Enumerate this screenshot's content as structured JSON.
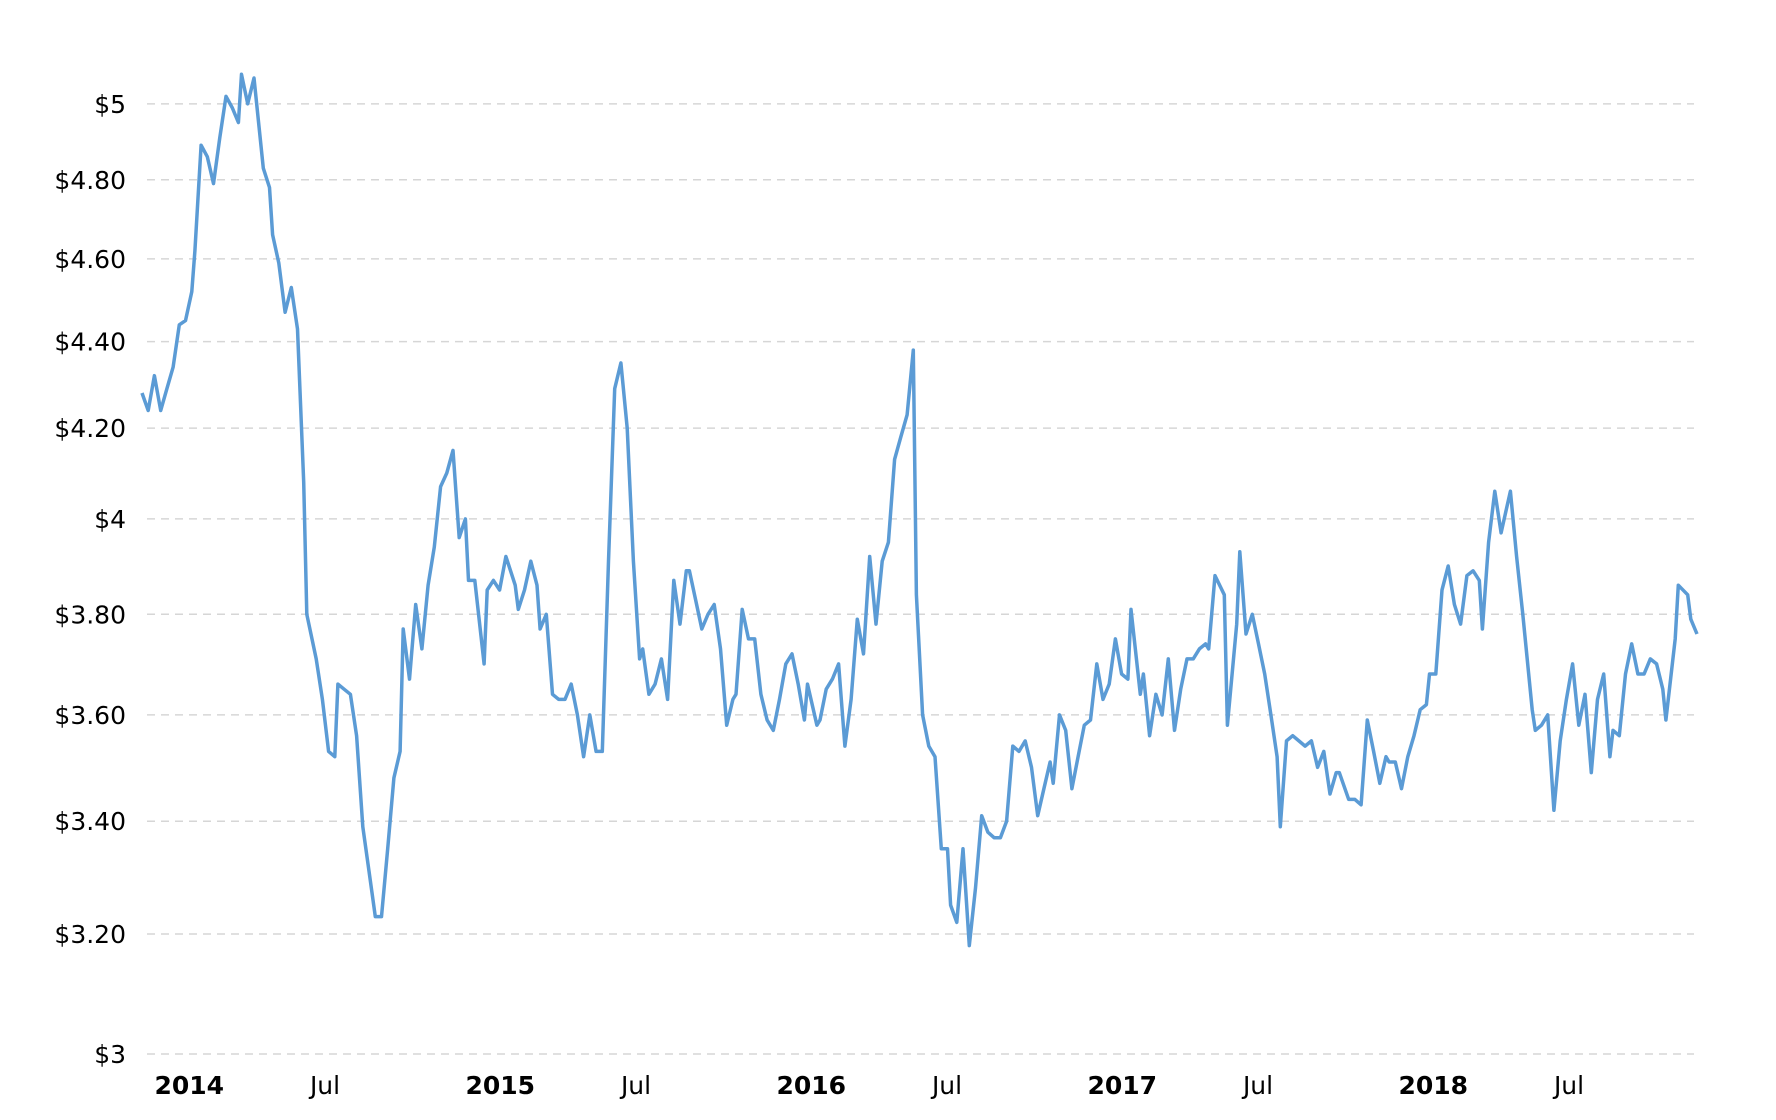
{
  "chart_data": {
    "type": "line",
    "log_scale_y": true,
    "grid": true,
    "xlim": [
      2013.96,
      2018.96
    ],
    "ylim": [
      3,
      5.1
    ],
    "xticks": [
      {
        "value": 2014,
        "label": "2014"
      },
      {
        "value": 2014.5,
        "label": "Jul"
      },
      {
        "value": 2015,
        "label": "2015"
      },
      {
        "value": 2015.5,
        "label": "Jul"
      },
      {
        "value": 2016,
        "label": "2016"
      },
      {
        "value": 2016.5,
        "label": "Jul"
      },
      {
        "value": 2017,
        "label": "2017"
      },
      {
        "value": 2017.5,
        "label": "Jul"
      },
      {
        "value": 2018,
        "label": "2018"
      },
      {
        "value": 2018.5,
        "label": "Jul"
      }
    ],
    "yticks": [
      {
        "value": 3,
        "label": "$3"
      },
      {
        "value": 3.2,
        "label": "$3.20"
      },
      {
        "value": 3.4,
        "label": "$3.40"
      },
      {
        "value": 3.6,
        "label": "$3.60"
      },
      {
        "value": 3.8,
        "label": "$3.80"
      },
      {
        "value": 4,
        "label": "$4"
      },
      {
        "value": 4.2,
        "label": "$4.20"
      },
      {
        "value": 4.4,
        "label": "$4.40"
      },
      {
        "value": 4.6,
        "label": "$4.60"
      },
      {
        "value": 4.8,
        "label": "$4.80"
      },
      {
        "value": 5,
        "label": "$5"
      }
    ],
    "color": "#5b9bd5",
    "x": [
      2013.96,
      2013.98,
      2014.0,
      2014.02,
      2014.04,
      2014.06,
      2014.08,
      2014.1,
      2014.12,
      2014.13,
      2014.15,
      2014.17,
      2014.19,
      2014.21,
      2014.23,
      2014.25,
      2014.27,
      2014.28,
      2014.3,
      2014.32,
      2014.35,
      2014.37,
      2014.38,
      2014.4,
      2014.42,
      2014.44,
      2014.46,
      2014.48,
      2014.49,
      2014.52,
      2014.54,
      2014.56,
      2014.58,
      2014.59,
      2014.61,
      2014.63,
      2014.65,
      2014.67,
      2014.69,
      2014.71,
      2014.73,
      2014.75,
      2014.77,
      2014.79,
      2014.8,
      2014.82,
      2014.84,
      2014.86,
      2014.88,
      2014.9,
      2014.92,
      2014.94,
      2014.96,
      2014.98,
      2015.0,
      2015.01,
      2015.03,
      2015.06,
      2015.07,
      2015.09,
      2015.11,
      2015.13,
      2015.16,
      2015.17,
      2015.19,
      2015.21,
      2015.23,
      2015.24,
      2015.26,
      2015.28,
      2015.3,
      2015.32,
      2015.34,
      2015.36,
      2015.38,
      2015.4,
      2015.42,
      2015.44,
      2015.46,
      2015.48,
      2015.5,
      2015.52,
      2015.54,
      2015.56,
      2015.57,
      2015.59,
      2015.61,
      2015.63,
      2015.65,
      2015.67,
      2015.69,
      2015.71,
      2015.72,
      2015.74,
      2015.76,
      2015.78,
      2015.8,
      2015.82,
      2015.84,
      2015.86,
      2015.87,
      2015.89,
      2015.91,
      2015.93,
      2015.95,
      2015.97,
      2015.99,
      2016.01,
      2016.03,
      2016.05,
      2016.07,
      2016.09,
      2016.1,
      2016.13,
      2016.14,
      2016.16,
      2016.18,
      2016.2,
      2016.22,
      2016.24,
      2016.26,
      2016.28,
      2016.3,
      2016.32,
      2016.34,
      2016.36,
      2016.38,
      2016.4,
      2016.42,
      2016.44,
      2016.45,
      2016.47,
      2016.49,
      2016.51,
      2016.53,
      2016.55,
      2016.56,
      2016.58,
      2016.6,
      2016.62,
      2016.64,
      2016.66,
      2016.68,
      2016.7,
      2016.72,
      2016.74,
      2016.76,
      2016.78,
      2016.8,
      2016.82,
      2016.84,
      2016.86,
      2016.88,
      2016.89,
      2016.91,
      2016.93,
      2016.95,
      2016.97,
      2016.99,
      2017.01,
      2017.03,
      2017.05,
      2017.07,
      2017.09,
      2017.11,
      2017.13,
      2017.14,
      2017.17,
      2017.18,
      2017.2,
      2017.22,
      2017.24,
      2017.26,
      2017.28,
      2017.3,
      2017.32,
      2017.34,
      2017.36,
      2017.38,
      2017.39,
      2017.41,
      2017.44,
      2017.45,
      2017.48,
      2017.49,
      2017.51,
      2017.53,
      2017.55,
      2017.57,
      2017.59,
      2017.61,
      2017.62,
      2017.64,
      2017.66,
      2017.68,
      2017.7,
      2017.72,
      2017.74,
      2017.76,
      2017.78,
      2017.8,
      2017.81,
      2017.84,
      2017.86,
      2017.88,
      2017.9,
      2017.92,
      2017.94,
      2017.96,
      2017.97,
      2017.99,
      2018.01,
      2018.03,
      2018.05,
      2018.07,
      2018.09,
      2018.1,
      2018.12,
      2018.14,
      2018.16,
      2018.18,
      2018.2,
      2018.22,
      2018.24,
      2018.26,
      2018.27,
      2018.29,
      2018.31,
      2018.33,
      2018.35,
      2018.36,
      2018.38,
      2018.4,
      2018.43,
      2018.44,
      2018.46,
      2018.48,
      2018.5,
      2018.52,
      2018.54,
      2018.56,
      2018.58,
      2018.6,
      2018.62,
      2018.64,
      2018.66,
      2018.68,
      2018.69,
      2018.71,
      2018.73,
      2018.75,
      2018.77,
      2018.79,
      2018.81,
      2018.83,
      2018.85,
      2018.86,
      2018.89,
      2018.9,
      2018.93,
      2018.94,
      2018.96
    ],
    "values": [
      4.28,
      4.24,
      4.32,
      4.24,
      4.29,
      4.34,
      4.44,
      4.45,
      4.52,
      4.62,
      4.89,
      4.86,
      4.79,
      4.91,
      5.02,
      4.99,
      4.95,
      5.08,
      5.0,
      5.07,
      4.83,
      4.78,
      4.66,
      4.59,
      4.47,
      4.53,
      4.43,
      4.08,
      3.8,
      3.71,
      3.63,
      3.53,
      3.52,
      3.66,
      3.65,
      3.64,
      3.56,
      3.39,
      3.31,
      3.23,
      3.23,
      3.35,
      3.48,
      3.53,
      3.77,
      3.67,
      3.82,
      3.73,
      3.86,
      3.94,
      4.07,
      4.1,
      4.15,
      3.96,
      4.0,
      3.87,
      3.87,
      3.7,
      3.85,
      3.87,
      3.85,
      3.92,
      3.86,
      3.81,
      3.85,
      3.91,
      3.86,
      3.77,
      3.8,
      3.64,
      3.63,
      3.63,
      3.66,
      3.6,
      3.52,
      3.6,
      3.53,
      3.53,
      3.91,
      4.29,
      4.35,
      4.2,
      3.91,
      3.71,
      3.73,
      3.64,
      3.66,
      3.71,
      3.63,
      3.87,
      3.78,
      3.89,
      3.89,
      3.83,
      3.77,
      3.8,
      3.82,
      3.73,
      3.58,
      3.63,
      3.64,
      3.81,
      3.75,
      3.75,
      3.64,
      3.59,
      3.57,
      3.63,
      3.7,
      3.72,
      3.66,
      3.59,
      3.66,
      3.58,
      3.59,
      3.65,
      3.67,
      3.7,
      3.54,
      3.63,
      3.79,
      3.72,
      3.92,
      3.78,
      3.91,
      3.95,
      4.13,
      4.18,
      4.23,
      4.38,
      3.84,
      3.6,
      3.54,
      3.52,
      3.35,
      3.35,
      3.25,
      3.22,
      3.35,
      3.18,
      3.28,
      3.41,
      3.38,
      3.37,
      3.37,
      3.4,
      3.54,
      3.53,
      3.55,
      3.5,
      3.41,
      3.46,
      3.51,
      3.47,
      3.6,
      3.57,
      3.46,
      3.52,
      3.58,
      3.59,
      3.7,
      3.63,
      3.66,
      3.75,
      3.68,
      3.67,
      3.81,
      3.64,
      3.68,
      3.56,
      3.64,
      3.6,
      3.71,
      3.57,
      3.65,
      3.71,
      3.71,
      3.73,
      3.74,
      3.73,
      3.88,
      3.84,
      3.58,
      3.78,
      3.93,
      3.76,
      3.8,
      3.74,
      3.68,
      3.6,
      3.52,
      3.39,
      3.55,
      3.56,
      3.55,
      3.54,
      3.55,
      3.5,
      3.53,
      3.45,
      3.49,
      3.49,
      3.44,
      3.44,
      3.43,
      3.59,
      3.53,
      3.47,
      3.52,
      3.51,
      3.51,
      3.46,
      3.52,
      3.56,
      3.61,
      3.62,
      3.68,
      3.68,
      3.85,
      3.9,
      3.82,
      3.78,
      3.88,
      3.89,
      3.87,
      3.77,
      3.95,
      4.06,
      3.97,
      4.03,
      4.06,
      3.92,
      3.8,
      3.61,
      3.57,
      3.58,
      3.6,
      3.42,
      3.55,
      3.63,
      3.7,
      3.58,
      3.64,
      3.49,
      3.63,
      3.68,
      3.52,
      3.57,
      3.56,
      3.68,
      3.74,
      3.68,
      3.68,
      3.71,
      3.7,
      3.65,
      3.59,
      3.75,
      3.86,
      3.84,
      3.79,
      3.76
    ]
  }
}
